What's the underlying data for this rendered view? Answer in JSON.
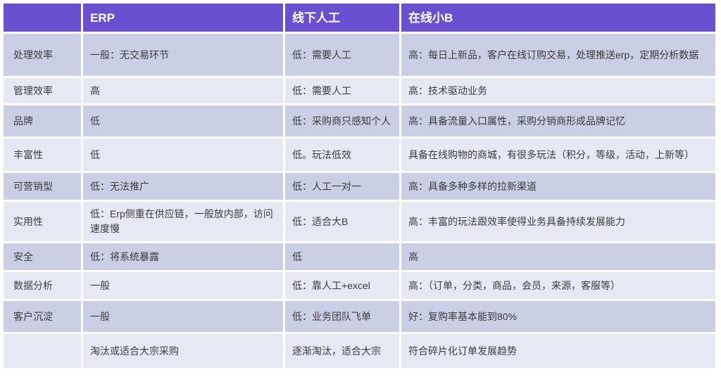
{
  "colors": {
    "header_bg": "#6a4fd1",
    "row_dark": "#cbcfe5",
    "row_light": "#e6e8f3",
    "text": "#3c3c3c",
    "header_text": "#ffffff"
  },
  "chart_data": {
    "type": "table",
    "title": "",
    "columns": [
      "",
      "ERP",
      "线下人工",
      "在线小B"
    ],
    "rows": [
      [
        "处理效率",
        "一般：无交易环节",
        "低：需要人工",
        "高：每日上新品，客户在线订购交易，处理推送erp，定期分析数据"
      ],
      [
        "管理效率",
        "高",
        "低：需要人工",
        "高：技术驱动业务"
      ],
      [
        "品牌",
        "低",
        "低：采购商只感知个人",
        "高：具备流量入口属性，采购分销商形成品牌记忆"
      ],
      [
        "丰富性",
        "低",
        "低。玩法低效",
        "具备在线购物的商城，有很多玩法（积分，等级，活动，上新等）"
      ],
      [
        "可营销型",
        "低：无法推广",
        "低：人工一对一",
        "高：具备多种多样的拉新渠道"
      ],
      [
        "实用性",
        "低：Erp侧重在供应链，一般放内部，访问速度慢",
        "低：适合大B",
        "高：丰富的玩法跟效率使得业务具备持续发展能力"
      ],
      [
        "安全",
        "低：将系统暴露",
        "低",
        "高"
      ],
      [
        "数据分析",
        "一般",
        "低：靠人工+excel",
        "高：（订单，分类，商品，会员，来源，客服等）"
      ],
      [
        "客户沉淀",
        "一般",
        "低：业务团队飞单",
        "好：复购率基本能到80%"
      ],
      [
        "",
        "淘汰或适合大宗采购",
        "逐渐淘汰，适合大宗",
        "符合碎片化订单发展趋势"
      ]
    ]
  },
  "header": {
    "cells": [
      "",
      "ERP",
      "线下人工",
      "在线小B"
    ]
  },
  "rows": [
    {
      "cells": [
        "处理效率",
        "一般：无交易环节",
        "低：需要人工",
        "高：每日上新品，客户在线订购交易，处理推送erp，定期分析数据"
      ]
    },
    {
      "cells": [
        "管理效率",
        "高",
        "低：需要人工",
        "高：技术驱动业务"
      ]
    },
    {
      "cells": [
        "品牌",
        "低",
        "低：采购商只感知个人",
        "高：具备流量入口属性，采购分销商形成品牌记忆"
      ]
    },
    {
      "cells": [
        "丰富性",
        "低",
        "低。玩法低效",
        "具备在线购物的商城，有很多玩法（积分，等级，活动，上新等）"
      ]
    },
    {
      "cells": [
        "可营销型",
        "低：无法推广",
        "低：人工一对一",
        "高：具备多种多样的拉新渠道"
      ]
    },
    {
      "cells": [
        "实用性",
        "低：Erp侧重在供应链，一般放内部，访问速度慢",
        "低：适合大B",
        "高：丰富的玩法跟效率使得业务具备持续发展能力"
      ]
    },
    {
      "cells": [
        "安全",
        "低：将系统暴露",
        "低",
        "高"
      ]
    },
    {
      "cells": [
        "数据分析",
        "一般",
        "低：靠人工+excel",
        "高：（订单，分类，商品，会员，来源，客服等）"
      ]
    },
    {
      "cells": [
        "客户沉淀",
        "一般",
        "低：业务团队飞单",
        "好：复购率基本能到80%"
      ]
    },
    {
      "cells": [
        "",
        "淘汰或适合大宗采购",
        "逐渐淘汰，适合大宗",
        "符合碎片化订单发展趋势"
      ]
    }
  ]
}
